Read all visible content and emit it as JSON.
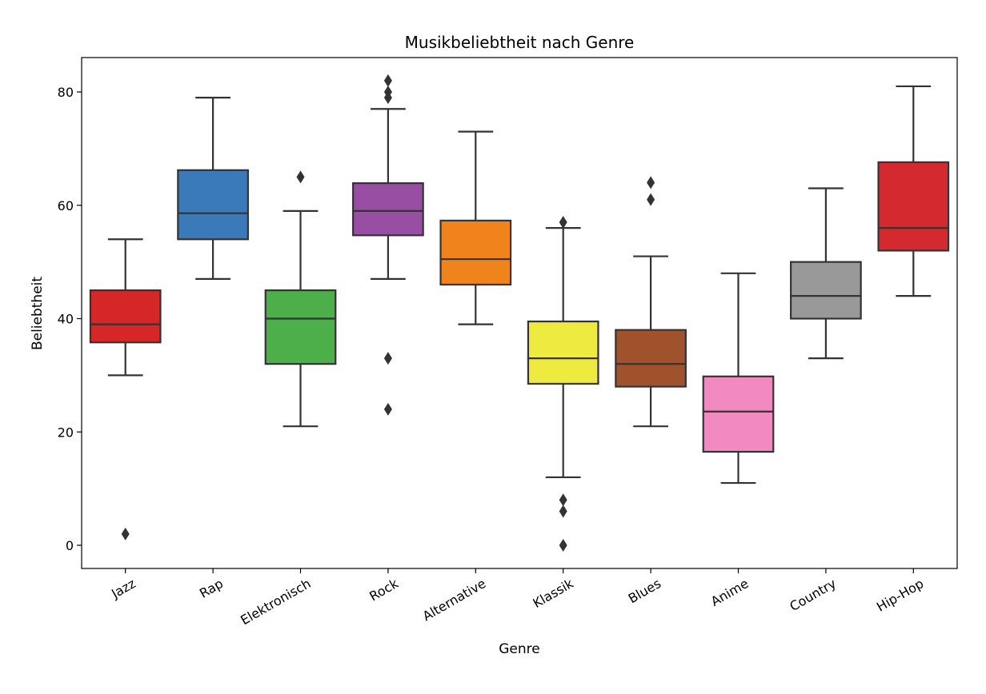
{
  "chart_data": {
    "type": "boxplot",
    "title": "Musikbeliebtheit nach Genre",
    "xlabel": "Genre",
    "ylabel": "Beliebtheit",
    "ylim": [
      -4,
      90
    ],
    "yticks": [
      0,
      20,
      40,
      60,
      80
    ],
    "grid": false,
    "categories": [
      "Jazz",
      "Rap",
      "Elektronisch",
      "Rock",
      "Alternative",
      "Klassik",
      "Blues",
      "Anime",
      "Country",
      "Hip-Hop"
    ],
    "colors": [
      "#d62728",
      "#3a7ab8",
      "#4daf4a",
      "#984ea3",
      "#f0831c",
      "#eeea40",
      "#a0522d",
      "#f08ac0",
      "#999999",
      "#d42a2f"
    ],
    "boxes": [
      {
        "whisker_low": 30,
        "q1": 35.8,
        "median": 39,
        "q3": 45,
        "whisker_high": 54,
        "outliers": [
          2
        ]
      },
      {
        "whisker_low": 47,
        "q1": 54,
        "median": 58.6,
        "q3": 66.2,
        "whisker_high": 79,
        "outliers": []
      },
      {
        "whisker_low": 21,
        "q1": 32,
        "median": 40,
        "q3": 45,
        "whisker_high": 59,
        "outliers": [
          65
        ]
      },
      {
        "whisker_low": 47,
        "q1": 54.7,
        "median": 59,
        "q3": 63.9,
        "whisker_high": 77,
        "outliers": [
          82,
          80,
          79,
          33,
          24
        ]
      },
      {
        "whisker_low": 39,
        "q1": 46,
        "median": 50.5,
        "q3": 57.3,
        "whisker_high": 73,
        "outliers": []
      },
      {
        "whisker_low": 12,
        "q1": 28.5,
        "median": 33,
        "q3": 39.5,
        "whisker_high": 56,
        "outliers": [
          57,
          8,
          6,
          0
        ]
      },
      {
        "whisker_low": 21,
        "q1": 28,
        "median": 32,
        "q3": 38,
        "whisker_high": 51,
        "outliers": [
          64,
          61
        ]
      },
      {
        "whisker_low": 11,
        "q1": 16.5,
        "median": 23.6,
        "q3": 29.8,
        "whisker_high": 48,
        "outliers": []
      },
      {
        "whisker_low": 33,
        "q1": 40,
        "median": 44,
        "q3": 50,
        "whisker_high": 63,
        "outliers": []
      },
      {
        "whisker_low": 44,
        "q1": 52,
        "median": 56,
        "q3": 67.6,
        "whisker_high": 81,
        "outliers": []
      }
    ]
  }
}
